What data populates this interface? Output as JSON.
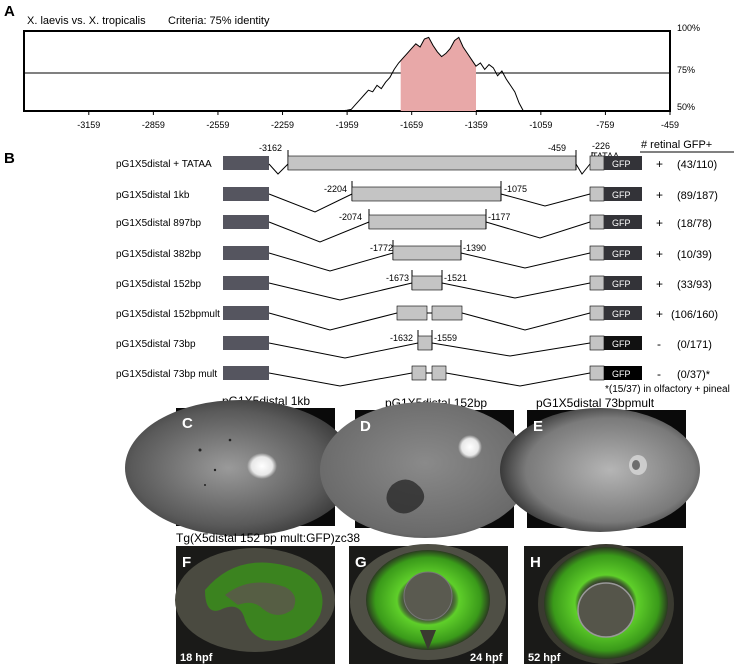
{
  "panel_letters": {
    "A": "A",
    "B": "B",
    "C": "C",
    "D": "D",
    "E": "E",
    "F": "F",
    "G": "G",
    "H": "H"
  },
  "panelA": {
    "comparison": "X. laevis vs. X. tropicalis",
    "criteria": "Criteria:  75% identity",
    "y_ticks": [
      "100%",
      "75%",
      "50%"
    ]
  },
  "chart_data": {
    "type": "area",
    "title": "",
    "xlabel": "",
    "ylabel": "",
    "x_ticks": [
      -3159,
      -2859,
      -2559,
      -2259,
      -1959,
      -1659,
      -1359,
      -1059,
      -759,
      -459
    ],
    "xlim": [
      -3460,
      -459
    ],
    "ylim": [
      50,
      100
    ],
    "threshold": 75,
    "highlight_range": [
      -1710,
      -1360
    ],
    "highlight_color": "#e8a8a8",
    "series": [
      {
        "x": [
          -1990,
          -1960,
          -1940,
          -1920,
          -1900,
          -1880,
          -1860,
          -1840,
          -1820,
          -1800,
          -1780,
          -1760,
          -1740,
          -1720,
          -1700,
          -1680,
          -1660,
          -1640,
          -1620,
          -1600,
          -1580,
          -1560,
          -1540,
          -1520,
          -1500,
          -1480,
          -1460,
          -1440,
          -1420,
          -1400,
          -1380,
          -1360,
          -1340,
          -1320,
          -1300,
          -1280,
          -1260,
          -1240,
          -1220,
          -1200,
          -1180,
          -1160,
          -1140
        ],
        "values": [
          50,
          50.5,
          51,
          54,
          57,
          60,
          63,
          62,
          66,
          64,
          68,
          71,
          76,
          80,
          83,
          86,
          89,
          92,
          90,
          95,
          96,
          91,
          87,
          84,
          86,
          89,
          94,
          96,
          90,
          86,
          82,
          78,
          80,
          76,
          79,
          77,
          72,
          75,
          70,
          66,
          62,
          55,
          50
        ]
      }
    ]
  },
  "panelB": {
    "column_header": "# retinal GFP+",
    "gfp_label": "GFP",
    "tataa_label": "TATAA",
    "tataa_coord": "-226",
    "footnote": "*(15/37) in olfactory + pineal",
    "constructs": [
      {
        "name": "pG1X5distal + TATAA",
        "left": "-3162",
        "right": "-459",
        "sign": "+",
        "count": "(43/110)"
      },
      {
        "name": "pG1X5distal 1kb",
        "left": "-2204",
        "right": "-1075",
        "sign": "+",
        "count": "(89/187)"
      },
      {
        "name": "pG1X5distal 897bp",
        "left": "-2074",
        "right": "-1177",
        "sign": "+",
        "count": "(18/78)"
      },
      {
        "name": "pG1X5distal 382bp",
        "left": "-1772",
        "right": "-1390",
        "sign": "+",
        "count": "(10/39)"
      },
      {
        "name": "pG1X5distal 152bp",
        "left": "-1673",
        "right": "-1521",
        "sign": "+",
        "count": "(33/93)"
      },
      {
        "name": "pG1X5distal 152bpmult",
        "left": "",
        "right": "",
        "sign": "+",
        "count": "(106/160)"
      },
      {
        "name": "pG1X5distal 73bp",
        "left": "-1632",
        "right": "-1559",
        "sign": "-",
        "count": "(0/171)"
      },
      {
        "name": "pG1X5distal 73bp mult",
        "left": "",
        "right": "",
        "sign": "-",
        "count": "(0/37)*"
      }
    ]
  },
  "micrographs": {
    "C_title": "pG1X5distal 1kb",
    "D_title": "pG1X5distal 152bp",
    "E_title": "pG1X5distal 73bpmult",
    "transgene_label": "Tg(X5distal 152 bp mult:GFP)zc38",
    "F_stage": "18 hpf",
    "G_stage": "24 hpf",
    "H_stage": "52 hpf"
  }
}
